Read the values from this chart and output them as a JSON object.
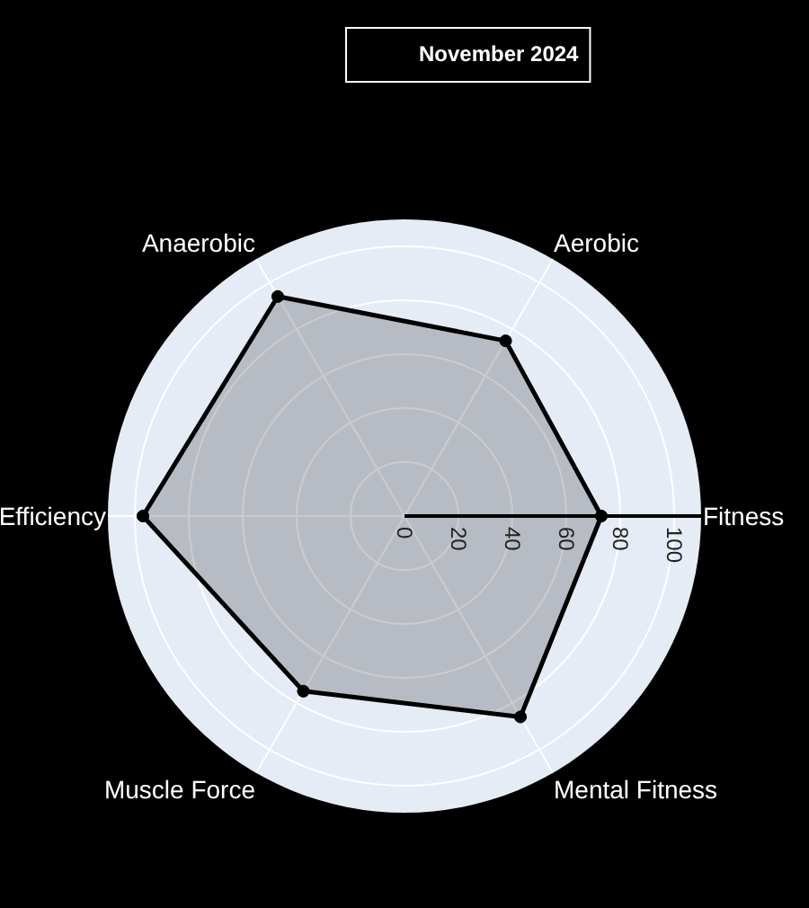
{
  "chart_data": {
    "type": "radar",
    "categories": [
      "Aerobic",
      "Fitness",
      "Mental Fitness",
      "Muscle Force",
      "Efficiency",
      "Anaerobic"
    ],
    "series": [
      {
        "name": "November 2024",
        "color": "#000000",
        "values": [
          75,
          73,
          86,
          75,
          97,
          94
        ]
      }
    ],
    "ylim": [
      0,
      110
    ],
    "yticks": [
      0,
      20,
      40,
      60,
      80,
      100
    ],
    "grid": true,
    "legend": "top",
    "marker": "circle"
  }
}
